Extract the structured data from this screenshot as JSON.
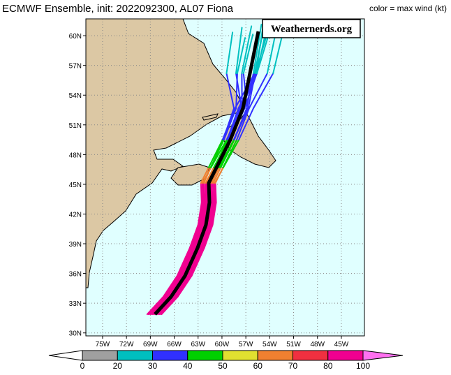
{
  "header": {
    "title": "ECMWF Ensemble, init: 2022092300, AL07 Fiona",
    "legend_title": "color = max wind (kt)"
  },
  "watermark": "Weathernerds.org",
  "map": {
    "lon_range": [
      -77.1,
      -42.1
    ],
    "lat_range": [
      29.7,
      61.7
    ],
    "lon_ticks": [
      {
        "value": -75,
        "label": "75W"
      },
      {
        "value": -72,
        "label": "72W"
      },
      {
        "value": -69,
        "label": "69W"
      },
      {
        "value": -66,
        "label": "66W"
      },
      {
        "value": -63,
        "label": "63W"
      },
      {
        "value": -60,
        "label": "60W"
      },
      {
        "value": -57,
        "label": "57W"
      },
      {
        "value": -54,
        "label": "54W"
      },
      {
        "value": -51,
        "label": "51W"
      },
      {
        "value": -48,
        "label": "48W"
      },
      {
        "value": -45,
        "label": "45W"
      }
    ],
    "lat_ticks": [
      {
        "value": 60,
        "label": "60N"
      },
      {
        "value": 57,
        "label": "57N"
      },
      {
        "value": 54,
        "label": "54N"
      },
      {
        "value": 51,
        "label": "51N"
      },
      {
        "value": 48,
        "label": "48N"
      },
      {
        "value": 45,
        "label": "45N"
      },
      {
        "value": 42,
        "label": "42N"
      },
      {
        "value": 39,
        "label": "39N"
      },
      {
        "value": 36,
        "label": "36N"
      },
      {
        "value": 33,
        "label": "33N"
      },
      {
        "value": 30,
        "label": "30N"
      }
    ]
  },
  "colorbar": {
    "ticks": [
      0,
      20,
      30,
      40,
      50,
      60,
      70,
      80,
      100
    ],
    "colors": [
      "#ffffff",
      "#a0a0a0",
      "#00c0c0",
      "#3030ff",
      "#00d000",
      "#e0e030",
      "#f08030",
      "#f03040",
      "#f00090",
      "#ff70f0"
    ]
  }
}
